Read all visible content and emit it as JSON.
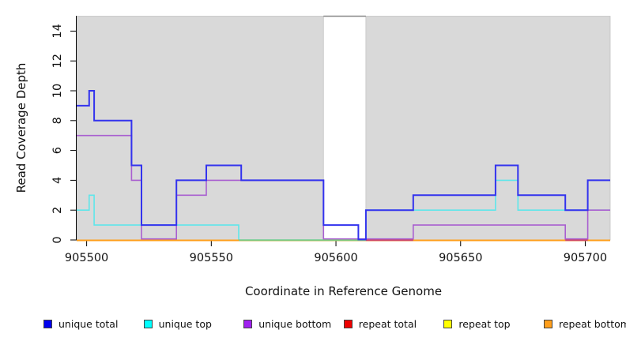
{
  "chart_data": {
    "type": "line",
    "subtype": "step-coverage",
    "title": "",
    "xlabel": "Coordinate in Reference Genome",
    "ylabel": "Read Coverage Depth",
    "xlim": [
      905496,
      905710
    ],
    "ylim": [
      0,
      15
    ],
    "x_ticks": [
      905500,
      905550,
      905600,
      905650,
      905700
    ],
    "y_ticks": [
      0,
      2,
      4,
      6,
      8,
      10,
      12,
      14
    ],
    "grid": false,
    "plot_bg_color": "#d9d9d9",
    "shaded_regions": [
      {
        "from": 905496,
        "to": 905595,
        "color": "#d9d9d9"
      },
      {
        "from": 905612,
        "to": 905710,
        "color": "#d9d9d9"
      }
    ],
    "white_band": {
      "from": 905595,
      "to": 905612,
      "top_line_color": "#888888"
    },
    "series": [
      {
        "name": "unique total",
        "color": "#3333ee",
        "legend_color": "#0000ee",
        "width": 2.0,
        "steps": [
          [
            905496,
            9
          ],
          [
            905501,
            10
          ],
          [
            905503,
            8
          ],
          [
            905518,
            5
          ],
          [
            905522,
            1
          ],
          [
            905536,
            4
          ],
          [
            905548,
            5
          ],
          [
            905562,
            4
          ],
          [
            905595,
            1
          ],
          [
            905609,
            0
          ],
          [
            905612,
            2
          ],
          [
            905631,
            3
          ],
          [
            905664,
            5
          ],
          [
            905673,
            3
          ],
          [
            905692,
            2
          ],
          [
            905701,
            4
          ]
        ]
      },
      {
        "name": "unique top",
        "color": "#5fe6ea",
        "legend_color": "#00ffff",
        "width": 1.6,
        "steps": [
          [
            905496,
            2
          ],
          [
            905501,
            3
          ],
          [
            905503,
            1
          ],
          [
            905561,
            0
          ],
          [
            905612,
            2
          ],
          [
            905664,
            4
          ],
          [
            905673,
            2
          ]
        ]
      },
      {
        "name": "unique bottom",
        "color": "#a95fd0",
        "legend_color": "#a020f0",
        "width": 1.6,
        "steps": [
          [
            905496,
            7
          ],
          [
            905518,
            4
          ],
          [
            905522,
            0
          ],
          [
            905536,
            3
          ],
          [
            905548,
            4
          ],
          [
            905595,
            0
          ],
          [
            905631,
            1
          ],
          [
            905692,
            0
          ],
          [
            905701,
            2
          ]
        ]
      },
      {
        "name": "repeat total",
        "color": "#cc2222",
        "legend_color": "#ee0000",
        "width": 1.6,
        "steps": [
          [
            905496,
            0
          ]
        ]
      },
      {
        "name": "repeat top",
        "color": "#ffff33",
        "legend_color": "#ffff00",
        "width": 1.6,
        "steps": [
          [
            905496,
            0
          ]
        ]
      },
      {
        "name": "repeat bottom",
        "color": "#ff9e1b",
        "legend_color": "#ff9e1b",
        "width": 2.0,
        "steps": [
          [
            905496,
            0
          ]
        ]
      }
    ],
    "zero_line_blends": [
      {
        "from": 905561,
        "to": 905612,
        "color": "#7dc87d"
      },
      {
        "from": 905612,
        "to": 905631,
        "color": "#cc4466"
      },
      {
        "from": 905692,
        "to": 905701,
        "color": "#cc4466"
      }
    ],
    "legend": {
      "position": "bottom",
      "items": [
        {
          "label": "unique total",
          "color": "#0000ee"
        },
        {
          "label": "unique top",
          "color": "#00ffff"
        },
        {
          "label": "unique bottom",
          "color": "#a020f0"
        },
        {
          "label": "repeat total",
          "color": "#ee0000"
        },
        {
          "label": "repeat top",
          "color": "#ffff00"
        },
        {
          "label": "repeat bottom",
          "color": "#ff9e1b"
        }
      ]
    }
  }
}
